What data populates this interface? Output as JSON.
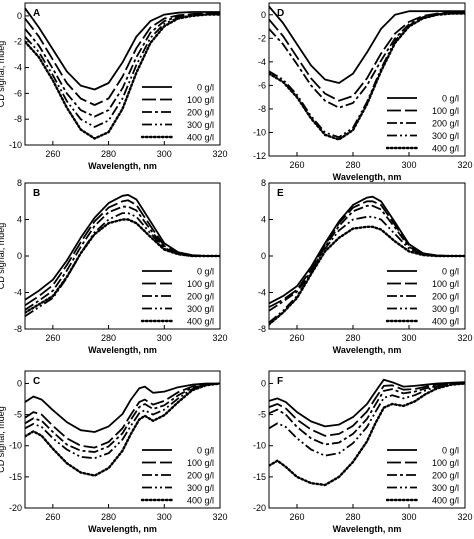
{
  "chart_data": [
    {
      "type": "line",
      "panel_label": "A",
      "xlim": [
        250,
        320
      ],
      "ylim": [
        -10,
        1
      ],
      "xticks": [
        260,
        280,
        300,
        320
      ],
      "yticks": [
        -10,
        -8,
        -6,
        -4,
        -2,
        0
      ],
      "ylabel": "CD signal, mdeg",
      "xlabel": "Wavelength, nm",
      "x": [
        250,
        255,
        260,
        265,
        270,
        275,
        280,
        285,
        290,
        295,
        300,
        305,
        310,
        315,
        320
      ],
      "series": [
        {
          "name": "0 g/l",
          "values": [
            0.6,
            -0.9,
            -2.6,
            -4.3,
            -5.4,
            -5.7,
            -5.2,
            -3.6,
            -1.6,
            -0.4,
            0.1,
            0.25,
            0.3,
            0.3,
            0.3
          ]
        },
        {
          "name": "100 g/l",
          "values": [
            -0.2,
            -1.6,
            -3.4,
            -5.2,
            -6.4,
            -6.9,
            -6.4,
            -4.7,
            -2.5,
            -0.9,
            -0.2,
            0.05,
            0.15,
            0.2,
            0.2
          ]
        },
        {
          "name": "200 g/l",
          "values": [
            -1.0,
            -2.3,
            -4.1,
            -6.0,
            -7.3,
            -7.8,
            -7.3,
            -5.6,
            -3.2,
            -1.3,
            -0.4,
            -0.05,
            0.1,
            0.15,
            0.2
          ]
        },
        {
          "name": "300 g/l",
          "values": [
            -1.6,
            -2.8,
            -4.6,
            -6.6,
            -8.0,
            -8.6,
            -8.1,
            -6.4,
            -3.8,
            -1.7,
            -0.6,
            -0.15,
            0.05,
            0.1,
            0.15
          ]
        },
        {
          "name": "400 g/l",
          "values": [
            -2.0,
            -3.2,
            -5.0,
            -7.1,
            -8.8,
            -9.5,
            -9.0,
            -7.2,
            -4.4,
            -2.1,
            -0.8,
            -0.2,
            0.0,
            0.1,
            0.1
          ]
        }
      ]
    },
    {
      "type": "line",
      "panel_label": "D",
      "xlim": [
        250,
        320
      ],
      "ylim": [
        -12,
        1
      ],
      "xticks": [
        260,
        280,
        300,
        320
      ],
      "yticks": [
        -12,
        -10,
        -8,
        -6,
        -4,
        -2,
        0
      ],
      "ylabel": "",
      "xlabel": "Wavelength, nm",
      "x": [
        250,
        255,
        260,
        265,
        270,
        275,
        280,
        285,
        290,
        295,
        300,
        305,
        310,
        315,
        320
      ],
      "series": [
        {
          "name": "0 g/l",
          "values": [
            0.7,
            -0.7,
            -2.5,
            -4.3,
            -5.5,
            -5.8,
            -5.0,
            -3.2,
            -1.2,
            0.0,
            0.3,
            0.3,
            0.3,
            0.3,
            0.3
          ]
        },
        {
          "name": "100 g/l",
          "values": [
            -0.4,
            -1.8,
            -3.6,
            -5.4,
            -6.7,
            -7.3,
            -6.9,
            -5.4,
            -3.3,
            -1.6,
            -0.6,
            -0.1,
            0.1,
            0.2,
            0.2
          ]
        },
        {
          "name": "200 g/l",
          "values": [
            -1.2,
            -2.5,
            -4.2,
            -6.0,
            -7.3,
            -7.9,
            -7.5,
            -6.0,
            -3.9,
            -2.0,
            -0.8,
            -0.2,
            0.05,
            0.15,
            0.2
          ]
        },
        {
          "name": "300 g/l",
          "values": [
            -4.8,
            -5.5,
            -6.8,
            -8.6,
            -10.0,
            -10.4,
            -9.6,
            -7.4,
            -4.6,
            -2.2,
            -0.9,
            -0.3,
            0.0,
            0.1,
            0.15
          ]
        },
        {
          "name": "400 g/l",
          "values": [
            -5.0,
            -5.7,
            -7.0,
            -8.8,
            -10.2,
            -10.6,
            -9.8,
            -7.6,
            -4.8,
            -2.4,
            -1.0,
            -0.3,
            0.0,
            0.1,
            0.1
          ]
        }
      ]
    },
    {
      "type": "line",
      "panel_label": "B",
      "xlim": [
        250,
        320
      ],
      "ylim": [
        -8,
        8
      ],
      "xticks": [
        260,
        280,
        300,
        320
      ],
      "yticks": [
        -8,
        -4,
        0,
        4,
        8
      ],
      "ylabel": "CD signal, mdeg",
      "xlabel": "Wavelength, nm",
      "x": [
        250,
        255,
        260,
        265,
        270,
        275,
        280,
        285,
        287,
        290,
        295,
        300,
        305,
        310,
        315,
        320
      ],
      "series": [
        {
          "name": "0 g/l",
          "values": [
            -4.8,
            -3.8,
            -2.6,
            -0.5,
            2.0,
            4.2,
            5.8,
            6.6,
            6.7,
            6.2,
            3.8,
            1.4,
            0.4,
            0.1,
            0.0,
            0.0
          ]
        },
        {
          "name": "100 g/l",
          "values": [
            -5.4,
            -4.4,
            -3.2,
            -1.0,
            1.5,
            3.8,
            5.3,
            6.0,
            6.1,
            5.6,
            3.3,
            1.1,
            0.3,
            0.05,
            0.0,
            0.0
          ]
        },
        {
          "name": "200 g/l",
          "values": [
            -5.9,
            -4.9,
            -3.8,
            -1.6,
            1.0,
            3.3,
            4.8,
            5.4,
            5.4,
            5.0,
            2.9,
            0.9,
            0.2,
            0.0,
            0.0,
            0.0
          ]
        },
        {
          "name": "300 g/l",
          "values": [
            -6.6,
            -5.6,
            -4.6,
            -2.4,
            0.3,
            2.6,
            4.0,
            4.7,
            4.7,
            4.3,
            2.5,
            0.8,
            0.2,
            0.0,
            0.0,
            0.0
          ]
        },
        {
          "name": "400 g/l",
          "values": [
            -6.2,
            -5.3,
            -4.4,
            -2.3,
            0.3,
            2.4,
            3.6,
            4.0,
            4.0,
            3.6,
            2.1,
            0.7,
            0.2,
            0.0,
            0.0,
            0.0
          ]
        }
      ]
    },
    {
      "type": "line",
      "panel_label": "E",
      "xlim": [
        250,
        320
      ],
      "ylim": [
        -8,
        8
      ],
      "xticks": [
        260,
        280,
        300,
        320
      ],
      "yticks": [
        -8,
        -4,
        0,
        4,
        8
      ],
      "ylabel": "",
      "xlabel": "Wavelength, nm",
      "x": [
        250,
        255,
        260,
        265,
        270,
        275,
        280,
        285,
        287,
        290,
        295,
        300,
        305,
        310,
        315,
        320
      ],
      "series": [
        {
          "name": "0 g/l",
          "values": [
            -5.2,
            -4.4,
            -3.3,
            -1.2,
            1.4,
            3.8,
            5.6,
            6.4,
            6.5,
            6.0,
            3.7,
            1.3,
            0.3,
            0.05,
            0.0,
            0.0
          ]
        },
        {
          "name": "100 g/l",
          "values": [
            -5.6,
            -4.8,
            -3.7,
            -1.5,
            1.2,
            3.6,
            5.3,
            6.0,
            6.0,
            5.6,
            3.4,
            1.2,
            0.3,
            0.05,
            0.0,
            0.0
          ]
        },
        {
          "name": "200 g/l",
          "values": [
            -6.0,
            -5.0,
            -3.9,
            -1.7,
            1.0,
            3.3,
            4.9,
            5.5,
            5.5,
            5.1,
            3.1,
            1.0,
            0.2,
            0.0,
            0.0,
            0.0
          ]
        },
        {
          "name": "300 g/l",
          "values": [
            -7.3,
            -6.0,
            -4.4,
            -1.9,
            0.8,
            2.8,
            4.0,
            4.3,
            4.3,
            4.0,
            2.4,
            0.8,
            0.2,
            0.0,
            0.0,
            0.0
          ]
        },
        {
          "name": "400 g/l",
          "values": [
            -7.5,
            -6.2,
            -4.6,
            -2.0,
            0.5,
            2.0,
            3.0,
            3.2,
            3.2,
            2.9,
            1.6,
            0.5,
            0.1,
            0.0,
            0.0,
            0.0
          ]
        }
      ]
    },
    {
      "type": "line",
      "panel_label": "C",
      "xlim": [
        250,
        320
      ],
      "ylim": [
        -20,
        2
      ],
      "xticks": [
        260,
        280,
        300,
        320
      ],
      "yticks": [
        -20,
        -15,
        -10,
        -5,
        0
      ],
      "ylabel": "CD signal, mdeg",
      "xlabel": "Wavelength, nm",
      "x": [
        250,
        253,
        256,
        260,
        265,
        270,
        275,
        280,
        285,
        288,
        291,
        293,
        296,
        300,
        305,
        310,
        315,
        320
      ],
      "series": [
        {
          "name": "0 g/l",
          "values": [
            -3.0,
            -2.1,
            -2.6,
            -4.3,
            -6.2,
            -7.5,
            -7.8,
            -6.9,
            -4.9,
            -2.6,
            -0.8,
            -0.5,
            -1.5,
            -1.3,
            -0.6,
            -0.2,
            0.0,
            0.0
          ]
        },
        {
          "name": "100 g/l",
          "values": [
            -5.5,
            -4.6,
            -5.0,
            -6.8,
            -8.8,
            -10.0,
            -10.3,
            -9.4,
            -7.2,
            -5.0,
            -3.0,
            -2.6,
            -3.4,
            -2.8,
            -1.4,
            -0.5,
            -0.1,
            0.0
          ]
        },
        {
          "name": "200 g/l",
          "values": [
            -6.4,
            -5.6,
            -6.0,
            -7.8,
            -9.8,
            -10.8,
            -11.0,
            -10.1,
            -8.0,
            -5.8,
            -3.8,
            -3.3,
            -4.1,
            -3.5,
            -1.9,
            -0.7,
            -0.2,
            0.0
          ]
        },
        {
          "name": "300 g/l",
          "values": [
            -7.2,
            -6.5,
            -7.0,
            -8.8,
            -10.6,
            -11.8,
            -12.0,
            -11.2,
            -9.0,
            -6.8,
            -4.8,
            -4.3,
            -5.0,
            -4.2,
            -2.4,
            -0.9,
            -0.2,
            0.0
          ]
        },
        {
          "name": "400 g/l",
          "values": [
            -8.5,
            -7.7,
            -8.4,
            -10.5,
            -12.8,
            -14.3,
            -14.8,
            -13.6,
            -10.8,
            -8.1,
            -5.8,
            -5.2,
            -6.0,
            -5.1,
            -3.0,
            -1.1,
            -0.3,
            0.0
          ]
        }
      ]
    },
    {
      "type": "line",
      "panel_label": "F",
      "xlim": [
        250,
        320
      ],
      "ylim": [
        -20,
        2
      ],
      "xticks": [
        260,
        280,
        300,
        320
      ],
      "yticks": [
        -20,
        -15,
        -10,
        -5,
        0
      ],
      "ylabel": "",
      "xlabel": "Wavelength, nm",
      "x": [
        250,
        253,
        256,
        260,
        265,
        270,
        275,
        280,
        285,
        288,
        291,
        294,
        298,
        302,
        306,
        310,
        315,
        320
      ],
      "series": [
        {
          "name": "0 g/l",
          "values": [
            -2.8,
            -2.4,
            -3.0,
            -4.6,
            -6.1,
            -6.9,
            -6.6,
            -5.4,
            -3.3,
            -1.3,
            0.6,
            0.2,
            -0.5,
            -0.4,
            -0.2,
            0.0,
            0.1,
            0.2
          ]
        },
        {
          "name": "100 g/l",
          "values": [
            -3.8,
            -3.3,
            -4.0,
            -5.8,
            -7.4,
            -8.4,
            -8.1,
            -6.8,
            -4.5,
            -2.4,
            -0.4,
            -0.3,
            -1.0,
            -0.9,
            -0.5,
            -0.2,
            0.0,
            0.1
          ]
        },
        {
          "name": "200 g/l",
          "values": [
            -4.8,
            -4.2,
            -5.0,
            -7.0,
            -8.8,
            -9.8,
            -9.5,
            -8.1,
            -5.7,
            -3.4,
            -1.2,
            -0.9,
            -1.6,
            -1.3,
            -0.8,
            -0.4,
            -0.1,
            0.0
          ]
        },
        {
          "name": "300 g/l",
          "values": [
            -7.2,
            -6.4,
            -7.0,
            -8.8,
            -10.6,
            -11.6,
            -11.2,
            -9.6,
            -7.0,
            -4.6,
            -2.3,
            -1.9,
            -2.4,
            -1.9,
            -1.1,
            -0.5,
            -0.1,
            0.0
          ]
        },
        {
          "name": "400 g/l",
          "values": [
            -13.2,
            -12.4,
            -13.4,
            -15.0,
            -16.0,
            -16.3,
            -15.0,
            -12.6,
            -9.3,
            -6.4,
            -3.9,
            -3.3,
            -3.6,
            -2.9,
            -1.7,
            -0.8,
            -0.2,
            0.0
          ]
        }
      ]
    }
  ]
}
